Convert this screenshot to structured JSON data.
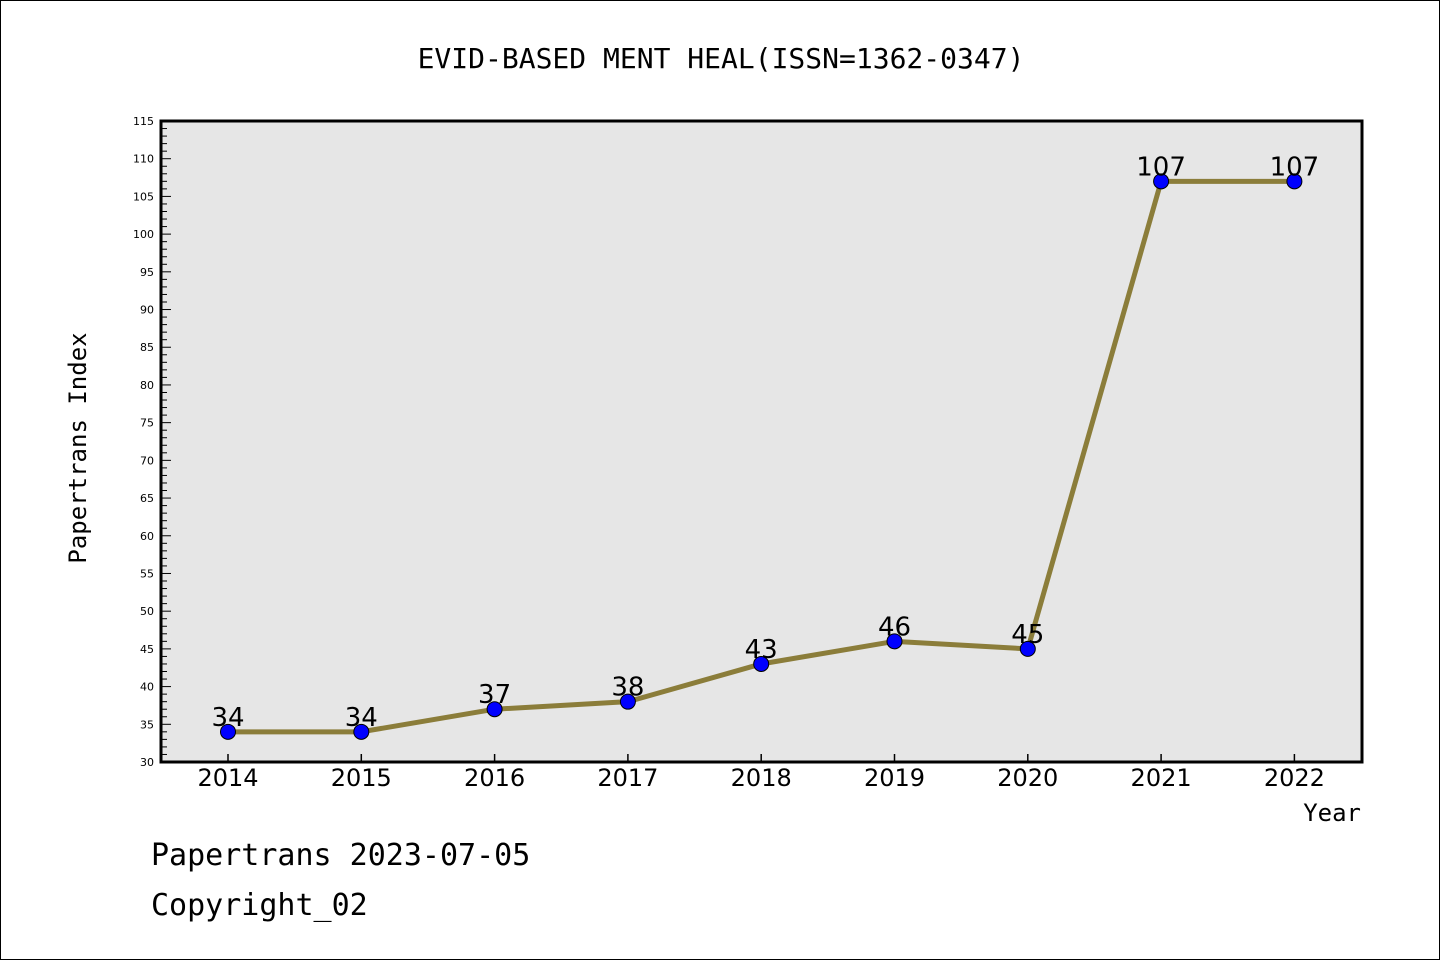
{
  "chart_data": {
    "type": "line",
    "title": "EVID-BASED MENT HEAL(ISSN=1362-0347)",
    "xlabel": "Year",
    "ylabel": "Papertrans Index",
    "categories": [
      "2014",
      "2015",
      "2016",
      "2017",
      "2018",
      "2019",
      "2020",
      "2021",
      "2022"
    ],
    "values": [
      34,
      34,
      37,
      38,
      43,
      46,
      45,
      107,
      107
    ],
    "ylim": [
      30,
      115
    ],
    "yticks": [
      30,
      35,
      40,
      45,
      50,
      55,
      60,
      65,
      70,
      75,
      80,
      85,
      90,
      95,
      100,
      105,
      110,
      115
    ],
    "grid": false,
    "colors": {
      "line": "#8b7d3a",
      "marker": "#0000ff",
      "plot_bg": "#e6e6e6"
    }
  },
  "footer": {
    "line1": "Papertrans 2023-07-05",
    "line2": "Copyright_02"
  }
}
